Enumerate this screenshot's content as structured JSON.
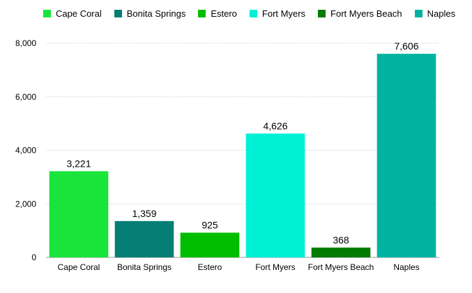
{
  "chart_data": {
    "type": "bar",
    "title": "",
    "xlabel": "",
    "ylabel": "",
    "ylim": [
      0,
      8000
    ],
    "yticks": [
      0,
      2000,
      4000,
      6000,
      8000
    ],
    "ytick_labels": [
      "0",
      "2,000",
      "4,000",
      "6,000",
      "8,000"
    ],
    "grid": true,
    "legend_position": "top",
    "categories": [
      "Cape Coral",
      "Bonita Springs",
      "Estero",
      "Fort Myers",
      "Fort Myers Beach",
      "Naples"
    ],
    "values": [
      3221,
      1359,
      925,
      4626,
      368,
      7606
    ],
    "value_labels": [
      "3,221",
      "1,359",
      "925",
      "4,626",
      "368",
      "7,606"
    ],
    "colors": [
      "#19e43c",
      "#057f76",
      "#00bd00",
      "#00f0d6",
      "#037b00",
      "#00b3a0"
    ]
  }
}
